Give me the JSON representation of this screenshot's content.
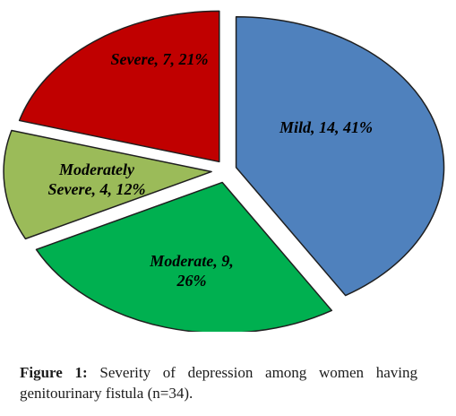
{
  "chart_data": {
    "type": "pie",
    "exploded": true,
    "slices": [
      {
        "label_lines": [
          "Mild, 14, 41%"
        ],
        "value": 14,
        "percent": 41,
        "color": "#4f81bd"
      },
      {
        "label_lines": [
          "Moderate, 9,",
          "26%"
        ],
        "value": 9,
        "percent": 26,
        "color": "#00b050"
      },
      {
        "label_lines": [
          "Moderately",
          "Severe, 4, 12%"
        ],
        "value": 4,
        "percent": 12,
        "color": "#9bbb59"
      },
      {
        "label_lines": [
          "Severe, 7, 21%"
        ],
        "value": 7,
        "percent": 21,
        "color": "#c00000"
      }
    ]
  },
  "caption": {
    "lead": "Figure 1:",
    "text": " Severity of depression among women having genitourinary fistula (n=34)."
  }
}
